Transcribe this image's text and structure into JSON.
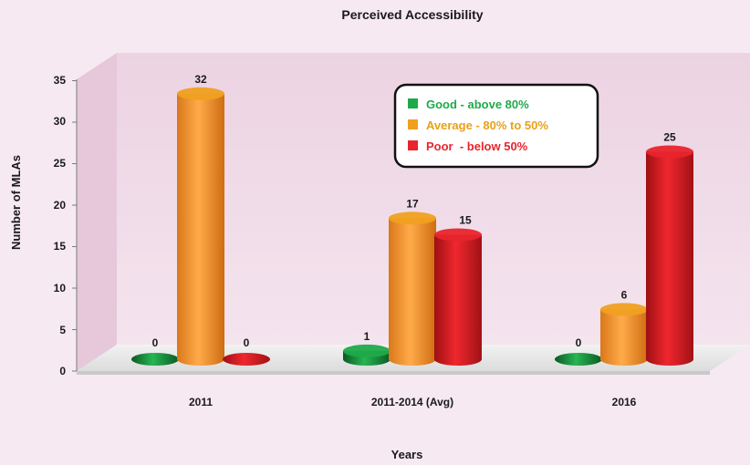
{
  "chart_data": {
    "type": "bar",
    "title": "Perceived Accessibility",
    "xlabel": "Years",
    "ylabel": "Number of MLAs",
    "categories": [
      "2011",
      "2011-2014 (Avg)",
      "2016"
    ],
    "ylim": [
      0,
      35
    ],
    "yticks": [
      0,
      5,
      10,
      15,
      20,
      25,
      30,
      35
    ],
    "legend_position": "top-right",
    "series": [
      {
        "name": "Good - above 80%",
        "values": [
          0,
          1,
          0
        ],
        "color": "#1faa4a"
      },
      {
        "name": "Average - 80% to 50%",
        "values": [
          32,
          17,
          6
        ],
        "color": "#f0a020"
      },
      {
        "name": "Poor  - below 50%",
        "values": [
          0,
          15,
          25
        ],
        "color": "#e8242c"
      }
    ]
  }
}
